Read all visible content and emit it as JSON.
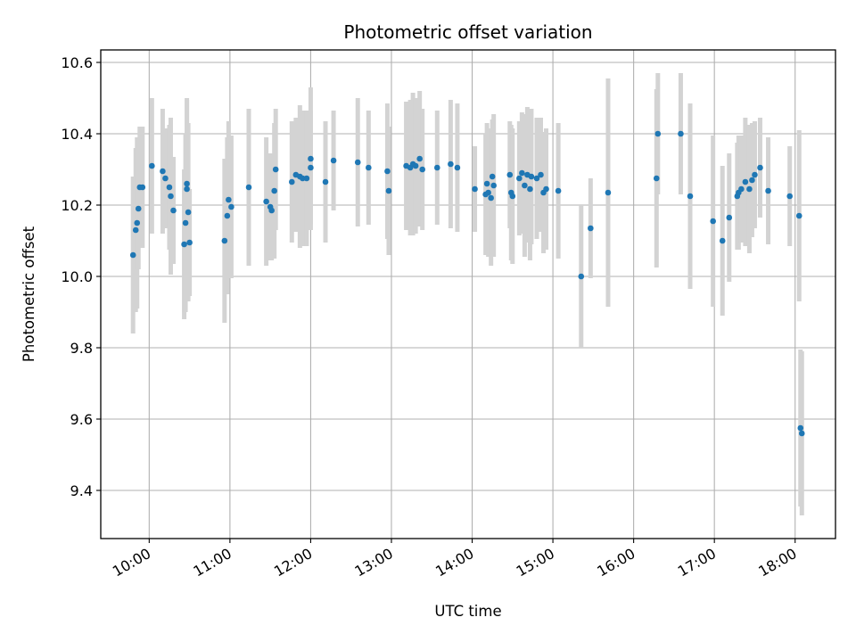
{
  "chart_data": {
    "type": "scatter",
    "title": "Photometric offset variation",
    "xlabel": "UTC time",
    "ylabel": "Photometric offset",
    "x_unit": "UTC time (HH:MM)",
    "xlim": [
      "09:24",
      "18:30"
    ],
    "ylim": [
      9.265,
      10.635
    ],
    "x_ticks": [
      "10:00",
      "11:00",
      "12:00",
      "13:00",
      "14:00",
      "15:00",
      "16:00",
      "17:00",
      "18:00"
    ],
    "y_ticks": [
      "9.4",
      "9.6",
      "9.8",
      "10.0",
      "10.2",
      "10.4",
      "10.6"
    ],
    "grid": true,
    "marker_color": "#1f77b4",
    "errorbar_color": "#d3d3d3",
    "series": [
      {
        "x": [
          "09:48",
          "09:50",
          "09:51",
          "09:52",
          "09:53",
          "09:55",
          "10:02",
          "10:10",
          "10:12",
          "10:15",
          "10:16",
          "10:18",
          "10:26",
          "10:27",
          "10:28",
          "10:28",
          "10:29",
          "10:30",
          "10:56",
          "10:58",
          "10:59",
          "11:01",
          "11:14",
          "11:27",
          "11:30",
          "11:31",
          "11:33",
          "11:34",
          "11:46",
          "11:49",
          "11:52",
          "11:54",
          "11:57",
          "12:00",
          "12:00",
          "12:11",
          "12:17",
          "12:35",
          "12:43",
          "12:57",
          "12:58",
          "13:11",
          "13:14",
          "13:16",
          "13:18",
          "13:21",
          "13:23",
          "13:34",
          "13:44",
          "13:49",
          "14:02",
          "14:10",
          "14:11",
          "14:12",
          "14:14",
          "14:15",
          "14:16",
          "14:28",
          "14:29",
          "14:30",
          "14:35",
          "14:37",
          "14:39",
          "14:41",
          "14:43",
          "14:44",
          "14:48",
          "14:51",
          "14:53",
          "14:55",
          "15:04",
          "15:21",
          "15:28",
          "15:41",
          "16:17",
          "16:18",
          "16:35",
          "16:42",
          "16:59",
          "17:06",
          "17:11",
          "17:17",
          "17:18",
          "17:20",
          "17:23",
          "17:26",
          "17:28",
          "17:30",
          "17:34",
          "17:40",
          "17:56",
          "18:03",
          "18:04"
        ],
        "y": [
          10.06,
          10.13,
          10.15,
          10.19,
          10.25,
          10.25,
          10.31,
          10.295,
          10.275,
          10.25,
          10.225,
          10.185,
          10.09,
          10.15,
          10.245,
          10.26,
          10.18,
          10.095,
          10.1,
          10.17,
          10.215,
          10.195,
          10.25,
          10.21,
          10.195,
          10.185,
          10.24,
          10.3,
          10.265,
          10.285,
          10.28,
          10.275,
          10.275,
          10.305,
          10.33,
          10.265,
          10.325,
          10.32,
          10.305,
          10.295,
          10.24,
          10.31,
          10.305,
          10.315,
          10.31,
          10.33,
          10.3,
          10.305,
          10.315,
          10.305,
          10.245,
          10.23,
          10.26,
          10.235,
          10.22,
          10.28,
          10.255,
          10.285,
          10.235,
          10.225,
          10.275,
          10.29,
          10.255,
          10.285,
          10.245,
          10.28,
          10.275,
          10.285,
          10.235,
          10.245,
          10.24,
          10.0,
          10.135,
          10.235,
          10.275,
          10.4,
          10.4,
          10.225,
          10.155,
          10.1,
          10.165,
          10.225,
          10.235,
          10.245,
          10.265,
          10.245,
          10.27,
          10.285,
          10.305,
          10.24,
          10.225,
          10.17,
          9.575
        ],
        "yerr": [
          0.22,
          0.23,
          0.24,
          0.17,
          0.17,
          0.17,
          0.19,
          0.175,
          0.14,
          0.175,
          0.22,
          0.15,
          0.21,
          0.25,
          0.25,
          0.24,
          0.25,
          0.15,
          0.23,
          0.22,
          0.22,
          0.2,
          0.22,
          0.18,
          0.15,
          0.14,
          0.19,
          0.17,
          0.17,
          0.16,
          0.2,
          0.19,
          0.19,
          0.16,
          0.2,
          0.17,
          0.14,
          0.18,
          0.16,
          0.19,
          0.18,
          0.18,
          0.19,
          0.2,
          0.19,
          0.19,
          0.17,
          0.16,
          0.18,
          0.18,
          0.12,
          0.17,
          0.17,
          0.18,
          0.19,
          0.16,
          0.2,
          0.15,
          0.19,
          0.19,
          0.16,
          0.17,
          0.2,
          0.19,
          0.2,
          0.19,
          0.17,
          0.16,
          0.17,
          0.17,
          0.19,
          0.2,
          0.14,
          0.32,
          0.25,
          0.17,
          0.17,
          0.26,
          0.24,
          0.21,
          0.18,
          0.15,
          0.16,
          0.15,
          0.18,
          0.18,
          0.16,
          0.15,
          0.14,
          0.15,
          0.14,
          0.24,
          0.22
        ]
      },
      {
        "x": [
          "18:05"
        ],
        "y": [
          9.56
        ],
        "yerr": [
          0.23
        ]
      }
    ]
  }
}
